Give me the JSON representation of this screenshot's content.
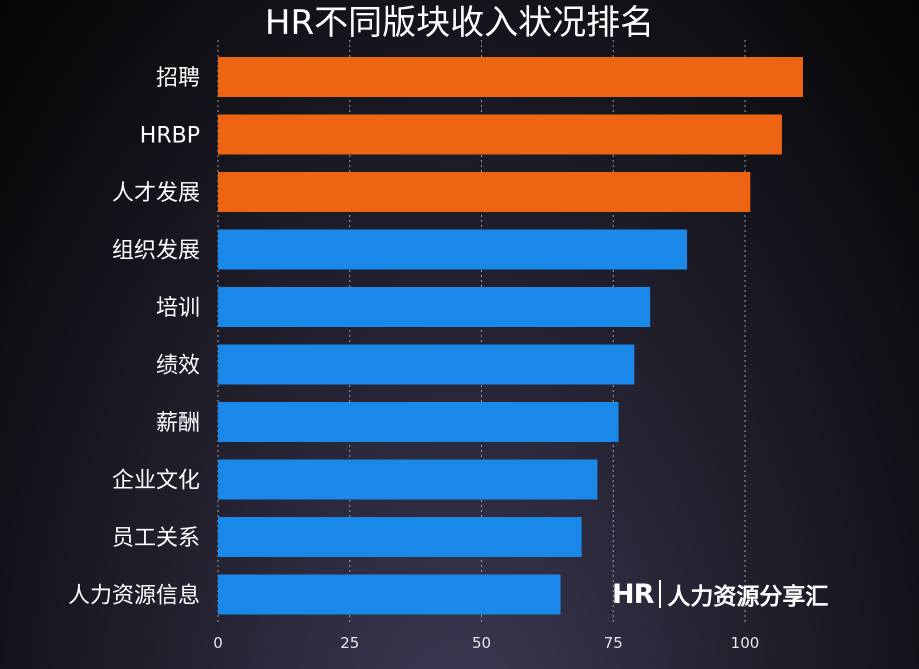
{
  "chart_data": {
    "type": "bar",
    "orientation": "horizontal",
    "title": "HR不同版块收入状况排名",
    "xlabel": "",
    "ylabel": "",
    "categories": [
      "招聘",
      "HRBP",
      "人才发展",
      "组织发展",
      "培训",
      "绩效",
      "薪酬",
      "企业文化",
      "员工关系",
      "人力资源信息"
    ],
    "values": [
      111,
      107,
      101,
      89,
      82,
      79,
      76,
      72,
      69,
      65
    ],
    "bar_colors": [
      "#ed6512",
      "#ed6512",
      "#ed6512",
      "#1a88e8",
      "#1a88e8",
      "#1a88e8",
      "#1a88e8",
      "#1a88e8",
      "#1a88e8",
      "#1a88e8"
    ],
    "xlim": [
      0,
      115
    ],
    "xticks": [
      0,
      25,
      50,
      75,
      100
    ],
    "grid": true
  },
  "watermark": {
    "logo": "HR",
    "text": "人力资源分享汇"
  }
}
